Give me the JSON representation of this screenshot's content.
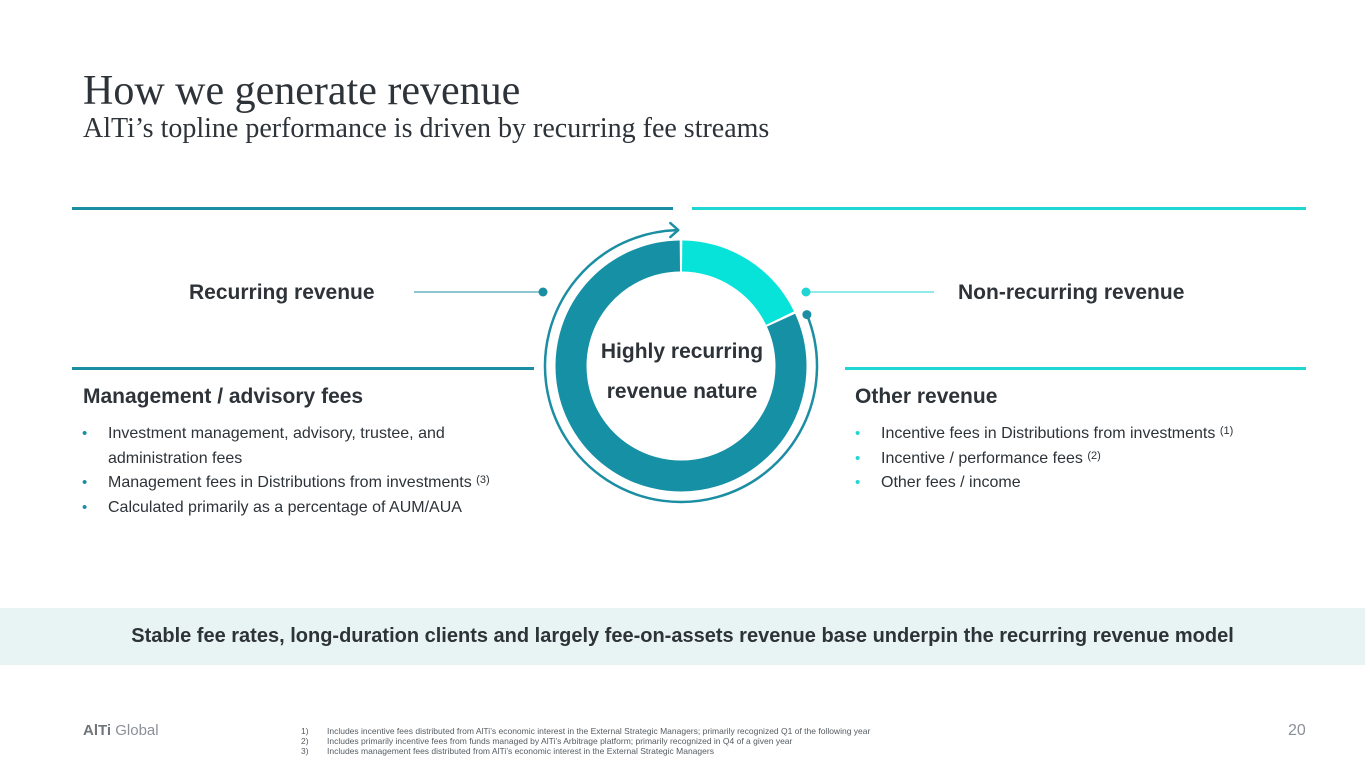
{
  "header": {
    "title": "How we generate revenue",
    "subtitle": "AlTi’s topline performance is driven by recurring fee streams"
  },
  "left": {
    "section_label": "Recurring revenue",
    "column_title": "Management / advisory fees",
    "bullets": [
      {
        "text": "Investment management, advisory, trustee, and administration fees",
        "note": ""
      },
      {
        "text": "Management fees in Distributions from investments",
        "note": "(3)"
      },
      {
        "text": "Calculated primarily as a percentage of AUM/AUA",
        "note": ""
      }
    ]
  },
  "right": {
    "section_label": "Non-recurring revenue",
    "column_title": "Other revenue",
    "bullets": [
      {
        "text": "Incentive fees in Distributions from investments",
        "note": "(1)"
      },
      {
        "text": "Incentive / performance fees",
        "note": "(2)"
      },
      {
        "text": "Other fees / income",
        "note": ""
      }
    ]
  },
  "donut": {
    "center_line1": "Highly recurring",
    "center_line2": "revenue nature",
    "recurring_share": 0.82,
    "non_recurring_share": 0.18,
    "colors": {
      "recurring": "#1590a5",
      "non_recurring": "#08e3d9"
    }
  },
  "banner": {
    "text": "Stable fee rates, long-duration clients and largely fee-on-assets revenue base underpin the recurring revenue model"
  },
  "footer": {
    "logo_bold": "AlTi",
    "logo_rest": "Global",
    "page_number": "20",
    "footnotes": [
      {
        "num": "1)",
        "text": "Includes incentive fees distributed from AlTi’s economic interest in the External Strategic Managers; primarily recognized Q1 of the following year"
      },
      {
        "num": "2)",
        "text": "Includes primarily incentive fees from funds managed by AlTi’s Arbitrage platform; primarily recognized in Q4 of a given year"
      },
      {
        "num": "3)",
        "text": "Includes management fees distributed from AlTi’s economic interest in the External Strategic Managers"
      }
    ]
  }
}
